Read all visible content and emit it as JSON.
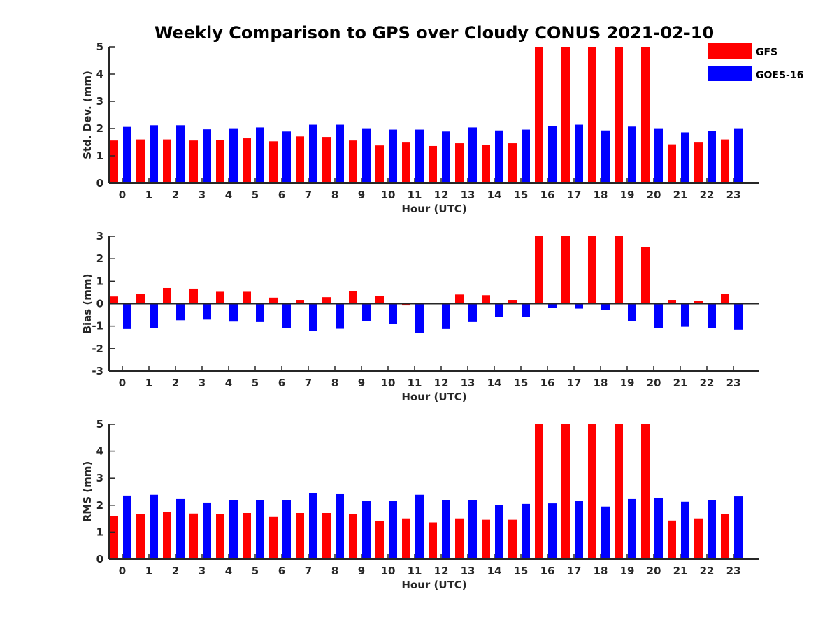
{
  "title": "Weekly Comparison to GPS over Cloudy CONUS 2021-02-10",
  "legend": [
    {
      "name": "GFS",
      "color": "#ff0000"
    },
    {
      "name": "GOES-16",
      "color": "#0000ff"
    }
  ],
  "chart_data": [
    {
      "type": "bar",
      "title": "Weekly Comparison to GPS over Cloudy CONUS 2021-02-10",
      "xlabel": "Hour (UTC)",
      "ylabel": "Std. Dev. (mm)",
      "ylim": [
        0,
        5
      ],
      "yticks": [
        0,
        1,
        2,
        3,
        4,
        5
      ],
      "categories": [
        "0",
        "1",
        "2",
        "3",
        "4",
        "5",
        "6",
        "7",
        "8",
        "9",
        "10",
        "11",
        "12",
        "13",
        "14",
        "15",
        "16",
        "17",
        "18",
        "19",
        "20",
        "21",
        "22",
        "23"
      ],
      "legend": "top-right",
      "series": [
        {
          "name": "GFS",
          "color": "#ff0000",
          "values": [
            1.56,
            1.6,
            1.6,
            1.56,
            1.58,
            1.64,
            1.53,
            1.71,
            1.69,
            1.56,
            1.38,
            1.51,
            1.36,
            1.46,
            1.4,
            1.46,
            5.0,
            5.0,
            5.0,
            5.0,
            5.0,
            1.42,
            1.51,
            1.6
          ]
        },
        {
          "name": "GOES-16",
          "color": "#0000ff",
          "values": [
            2.06,
            2.12,
            2.12,
            1.97,
            2.01,
            2.04,
            1.89,
            2.14,
            2.14,
            2.01,
            1.96,
            1.96,
            1.89,
            2.04,
            1.93,
            1.96,
            2.09,
            2.14,
            1.93,
            2.07,
            2.01,
            1.86,
            1.91,
            2.01
          ]
        }
      ]
    },
    {
      "type": "bar",
      "xlabel": "Hour (UTC)",
      "ylabel": "Bias (mm)",
      "ylim": [
        -3,
        3
      ],
      "yticks": [
        -3,
        -2,
        -1,
        0,
        1,
        2,
        3
      ],
      "categories": [
        "0",
        "1",
        "2",
        "3",
        "4",
        "5",
        "6",
        "7",
        "8",
        "9",
        "10",
        "11",
        "12",
        "13",
        "14",
        "15",
        "16",
        "17",
        "18",
        "19",
        "20",
        "21",
        "22",
        "23"
      ],
      "series": [
        {
          "name": "GFS",
          "color": "#ff0000",
          "values": [
            0.32,
            0.45,
            0.7,
            0.67,
            0.53,
            0.53,
            0.27,
            0.17,
            0.29,
            0.55,
            0.33,
            -0.08,
            0.03,
            0.41,
            0.38,
            0.17,
            3.0,
            3.0,
            3.0,
            3.0,
            2.53,
            0.17,
            0.14,
            0.43
          ]
        },
        {
          "name": "GOES-16",
          "color": "#0000ff",
          "values": [
            -1.13,
            -1.09,
            -0.74,
            -0.71,
            -0.8,
            -0.82,
            -1.08,
            -1.2,
            -1.12,
            -0.78,
            -0.91,
            -1.32,
            -1.13,
            -0.82,
            -0.58,
            -0.6,
            -0.19,
            -0.22,
            -0.27,
            -0.79,
            -1.08,
            -1.03,
            -1.08,
            -1.16
          ]
        }
      ]
    },
    {
      "type": "bar",
      "xlabel": "Hour (UTC)",
      "ylabel": "RMS (mm)",
      "ylim": [
        0,
        5
      ],
      "yticks": [
        0,
        1,
        2,
        3,
        4,
        5
      ],
      "categories": [
        "0",
        "1",
        "2",
        "3",
        "4",
        "5",
        "6",
        "7",
        "8",
        "9",
        "10",
        "11",
        "12",
        "13",
        "14",
        "15",
        "16",
        "17",
        "18",
        "19",
        "20",
        "21",
        "22",
        "23"
      ],
      "series": [
        {
          "name": "GFS",
          "color": "#ff0000",
          "values": [
            1.59,
            1.67,
            1.76,
            1.69,
            1.67,
            1.71,
            1.56,
            1.71,
            1.71,
            1.67,
            1.41,
            1.51,
            1.36,
            1.51,
            1.46,
            1.46,
            5.0,
            5.0,
            5.0,
            5.0,
            5.0,
            1.43,
            1.51,
            1.67
          ]
        },
        {
          "name": "GOES-16",
          "color": "#0000ff",
          "values": [
            2.36,
            2.39,
            2.23,
            2.1,
            2.18,
            2.18,
            2.18,
            2.46,
            2.41,
            2.15,
            2.15,
            2.39,
            2.2,
            2.2,
            2.0,
            2.05,
            2.07,
            2.15,
            1.95,
            2.23,
            2.28,
            2.13,
            2.18,
            2.33
          ]
        }
      ]
    }
  ]
}
